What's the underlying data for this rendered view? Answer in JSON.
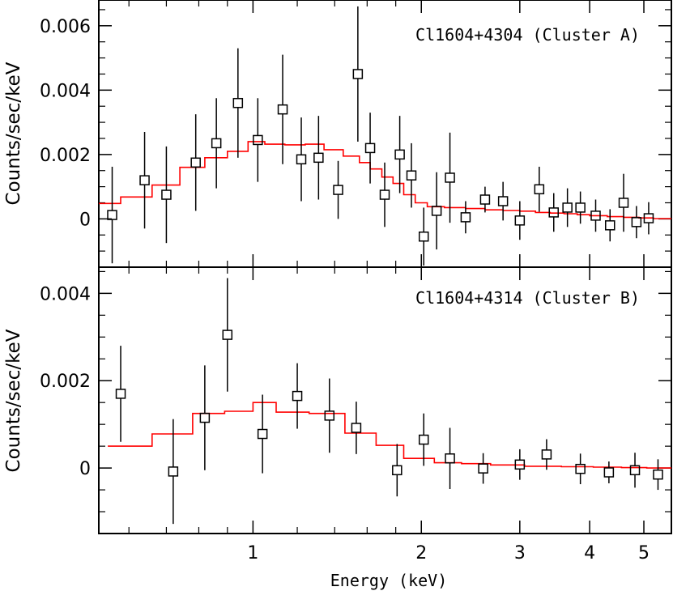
{
  "figure": {
    "xlabel": "Energy (keV)",
    "x_ticks": [
      "1",
      "2",
      "3",
      "4",
      "5"
    ]
  },
  "chart_data": [
    {
      "type": "scatter",
      "title": "Cl1604+4304 (Cluster A)",
      "xlabel": "Energy (keV)",
      "ylabel": "Counts/sec/keV",
      "xscale": "log",
      "xlim": [
        0.53,
        5.6
      ],
      "ylim": [
        -0.0015,
        0.0068
      ],
      "y_ticks": [
        "0",
        "0.002",
        "0.004",
        "0.006"
      ],
      "y_tick_values": [
        0,
        0.002,
        0.004,
        0.006
      ],
      "series": [
        {
          "kind": "data_points_with_error_bars",
          "color": "#000000",
          "x": [
            0.56,
            0.64,
            0.7,
            0.79,
            0.86,
            0.94,
            1.02,
            1.13,
            1.22,
            1.31,
            1.42,
            1.54,
            1.62,
            1.72,
            1.83,
            1.92,
            2.02,
            2.13,
            2.25,
            2.4,
            2.6,
            2.8,
            3.0,
            3.25,
            3.45,
            3.65,
            3.85,
            4.1,
            4.35,
            4.6,
            4.85,
            5.1
          ],
          "y": [
            0.00012,
            0.0012,
            0.00075,
            0.00175,
            0.00235,
            0.0036,
            0.00245,
            0.0034,
            0.00185,
            0.0019,
            0.0009,
            0.0045,
            0.0022,
            0.00075,
            0.002,
            0.00135,
            -0.00055,
            0.00025,
            0.00128,
            5e-05,
            0.0006,
            0.00055,
            -5e-05,
            0.00092,
            0.0002,
            0.00035,
            0.00035,
            0.0001,
            -0.0002,
            0.0005,
            -0.0001,
            2e-05
          ],
          "y_err": [
            0.0015,
            0.0015,
            0.0015,
            0.0015,
            0.0014,
            0.0017,
            0.0013,
            0.0017,
            0.0013,
            0.0013,
            0.0009,
            0.0021,
            0.0011,
            0.001,
            0.0012,
            0.001,
            0.0009,
            0.0012,
            0.0014,
            0.0005,
            0.0004,
            0.0006,
            0.0006,
            0.0007,
            0.0006,
            0.0006,
            0.0005,
            0.0005,
            0.0005,
            0.0009,
            0.0005,
            0.0005
          ]
        },
        {
          "kind": "model_step",
          "color": "#ff0000",
          "edges": [
            0.53,
            0.58,
            0.66,
            0.74,
            0.82,
            0.9,
            0.98,
            1.05,
            1.14,
            1.24,
            1.34,
            1.45,
            1.55,
            1.62,
            1.7,
            1.78,
            1.86,
            1.95,
            2.05,
            2.2,
            2.4,
            2.6,
            2.8,
            3.0,
            3.2,
            3.4,
            3.6,
            3.8,
            4.0,
            4.3,
            4.6,
            4.9,
            5.2,
            5.6
          ],
          "values": [
            0.00048,
            0.00068,
            0.00105,
            0.0016,
            0.0019,
            0.0021,
            0.0024,
            0.00232,
            0.0023,
            0.00232,
            0.00215,
            0.00195,
            0.00175,
            0.00155,
            0.0013,
            0.0011,
            0.00075,
            0.0005,
            0.00038,
            0.00035,
            0.00032,
            0.00028,
            0.00026,
            0.00024,
            0.0002,
            0.00018,
            0.00016,
            0.00013,
            0.0001,
            7e-05,
            5e-05,
            3e-05,
            1e-05
          ]
        }
      ]
    },
    {
      "type": "scatter",
      "title": "Cl1604+4314 (Cluster B)",
      "xlabel": "Energy (keV)",
      "ylabel": "Counts/sec/keV",
      "xscale": "log",
      "xlim": [
        0.53,
        5.6
      ],
      "ylim": [
        -0.0015,
        0.0046
      ],
      "y_ticks": [
        "0",
        "0.002",
        "0.004"
      ],
      "y_tick_values": [
        0,
        0.002,
        0.004
      ],
      "series": [
        {
          "kind": "data_points_with_error_bars",
          "color": "#000000",
          "x": [
            0.58,
            0.72,
            0.82,
            0.9,
            1.04,
            1.2,
            1.37,
            1.53,
            1.81,
            2.02,
            2.25,
            2.58,
            3.0,
            3.35,
            3.85,
            4.33,
            4.82,
            5.3
          ],
          "y": [
            0.0017,
            -8e-05,
            0.00115,
            0.00305,
            0.00078,
            0.00165,
            0.0012,
            0.00092,
            -5e-05,
            0.00065,
            0.00022,
            -1e-05,
            8e-05,
            0.00031,
            -2e-05,
            -0.0001,
            -5e-05,
            -0.00015
          ],
          "y_err": [
            0.0011,
            0.0012,
            0.0012,
            0.0013,
            0.0009,
            0.00075,
            0.00085,
            0.0006,
            0.0006,
            0.0006,
            0.0007,
            0.00035,
            0.00035,
            0.00035,
            0.00035,
            0.00025,
            0.0004,
            0.00035
          ]
        },
        {
          "kind": "model_step",
          "color": "#ff0000",
          "edges": [
            0.55,
            0.66,
            0.78,
            0.89,
            1.0,
            1.1,
            1.26,
            1.46,
            1.66,
            1.86,
            2.11,
            2.36,
            2.66,
            3.06,
            3.56,
            4.06,
            4.56,
            5.06,
            5.6
          ],
          "values": [
            0.0005,
            0.00078,
            0.00125,
            0.0013,
            0.0015,
            0.00128,
            0.00125,
            0.0008,
            0.00052,
            0.00022,
            0.00012,
            0.0001,
            7e-05,
            4e-05,
            3e-05,
            2e-05,
            1e-05,
            0.0
          ]
        }
      ]
    }
  ]
}
